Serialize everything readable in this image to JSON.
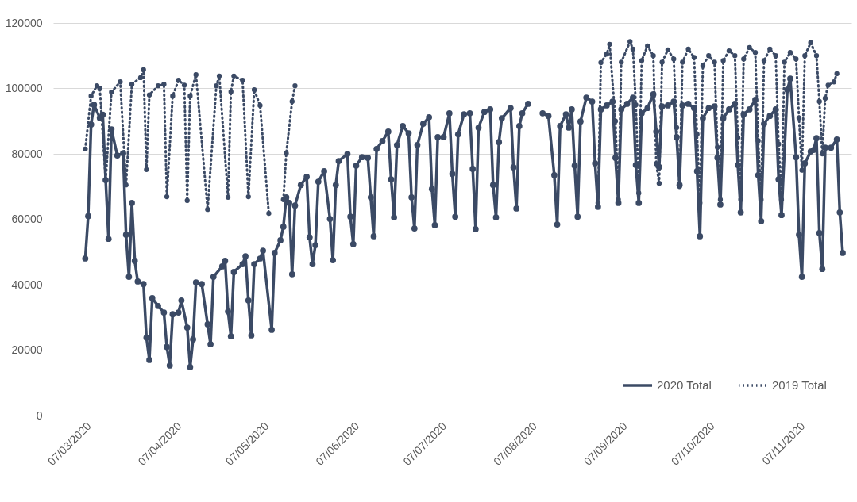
{
  "chart_data": {
    "type": "line",
    "marker": "circle",
    "grid": "y",
    "legend": "bottom right",
    "xlim": [
      "2020-02-25",
      "2020-11-25"
    ],
    "xticks": [
      {
        "value": "2020-03-07",
        "label": "07/03/2020"
      },
      {
        "value": "2020-04-07",
        "label": "07/04/2020"
      },
      {
        "value": "2020-05-07",
        "label": "07/05/2020"
      },
      {
        "value": "2020-06-07",
        "label": "07/06/2020"
      },
      {
        "value": "2020-07-07",
        "label": "07/07/2020"
      },
      {
        "value": "2020-08-07",
        "label": "07/08/2020"
      },
      {
        "value": "2020-09-07",
        "label": "07/09/2020"
      },
      {
        "value": "2020-10-07",
        "label": "07/10/2020"
      },
      {
        "value": "2020-11-07",
        "label": "07/11/2020"
      }
    ],
    "ylim": [
      0,
      120000
    ],
    "yticks": [
      0,
      20000,
      40000,
      60000,
      80000,
      100000,
      120000
    ],
    "series": [
      {
        "name": "2020 Total",
        "color": "#3b4a65",
        "line_style": "solid",
        "x": [
          "2020-03-07",
          "2020-03-08",
          "2020-03-09",
          "2020-03-10",
          "2020-03-12",
          "2020-03-13",
          "2020-03-14",
          "2020-03-15",
          "2020-03-16",
          "2020-03-18",
          "2020-03-20",
          "2020-03-21",
          "2020-03-22",
          "2020-03-23",
          "2020-03-24",
          "2020-03-25",
          "2020-03-27",
          "2020-03-28",
          "2020-03-29",
          "2020-03-30",
          "2020-04-01",
          "2020-04-03",
          "2020-04-04",
          "2020-04-05",
          "2020-04-06",
          "2020-04-08",
          "2020-04-09",
          "2020-04-11",
          "2020-04-12",
          "2020-04-13",
          "2020-04-14",
          "2020-04-16",
          "2020-04-18",
          "2020-04-19",
          "2020-04-20",
          "2020-04-23",
          "2020-04-24",
          "2020-04-25",
          "2020-04-26",
          "2020-04-27",
          "2020-04-30",
          "2020-05-01",
          "2020-05-02",
          "2020-05-03",
          "2020-05-04",
          "2020-05-06",
          "2020-05-07",
          "2020-05-10",
          "2020-05-11",
          "2020-05-13",
          "2020-05-14",
          "2020-05-15",
          "2020-05-16",
          "2020-05-17",
          "2020-05-18",
          "2020-05-20",
          "2020-05-22",
          "2020-05-23",
          "2020-05-24",
          "2020-05-25",
          "2020-05-26",
          "2020-05-28",
          "2020-05-30",
          "2020-05-31",
          "2020-06-01",
          "2020-06-02",
          "2020-06-05",
          "2020-06-06",
          "2020-06-07",
          "2020-06-08",
          "2020-06-10",
          "2020-06-12",
          "2020-06-13",
          "2020-06-14",
          "2020-06-15",
          "2020-06-17",
          "2020-06-19",
          "2020-06-20",
          "2020-06-21",
          "2020-06-22",
          "2020-06-24",
          "2020-06-26",
          "2020-06-27",
          "2020-06-28",
          "2020-06-29",
          "2020-07-01",
          "2020-07-03",
          "2020-07-04",
          "2020-07-05",
          "2020-07-06",
          "2020-07-08",
          "2020-07-10",
          "2020-07-11",
          "2020-07-12",
          "2020-07-13",
          "2020-07-15",
          "2020-07-17",
          "2020-07-18",
          "2020-07-19",
          "2020-07-20",
          "2020-07-22",
          "2020-07-24",
          "2020-07-25",
          "2020-07-26",
          "2020-07-27",
          "2020-07-28",
          "2020-07-31",
          "2020-08-01",
          "2020-08-02",
          "2020-08-03",
          "2020-08-04",
          "2020-08-06",
          "2020-08-09",
          "2020-08-11",
          "2020-08-13",
          "2020-08-15",
          "2020-08-16",
          "2020-08-17",
          "2020-08-19",
          "2020-08-20",
          "2020-08-21",
          "2020-08-22",
          "2020-08-23",
          "2020-08-24",
          "2020-08-26",
          "2020-08-28",
          "2020-08-29",
          "2020-08-30",
          "2020-08-31",
          "2020-09-02",
          "2020-09-04",
          "2020-09-05",
          "2020-09-06",
          "2020-09-07",
          "2020-09-09",
          "2020-09-11",
          "2020-09-12",
          "2020-09-13",
          "2020-09-14",
          "2020-09-16",
          "2020-09-18",
          "2020-09-19",
          "2020-09-20",
          "2020-09-21",
          "2020-09-23",
          "2020-09-25",
          "2020-09-26",
          "2020-09-27",
          "2020-09-28",
          "2020-09-30",
          "2020-10-02",
          "2020-10-03",
          "2020-10-04",
          "2020-10-05",
          "2020-10-07",
          "2020-10-09",
          "2020-10-10",
          "2020-10-11",
          "2020-10-12",
          "2020-10-14",
          "2020-10-16",
          "2020-10-17",
          "2020-10-18",
          "2020-10-19",
          "2020-10-21",
          "2020-10-23",
          "2020-10-24",
          "2020-10-25",
          "2020-10-26",
          "2020-10-28",
          "2020-10-30",
          "2020-10-31",
          "2020-11-01",
          "2020-11-03",
          "2020-11-04",
          "2020-11-06",
          "2020-11-07",
          "2020-11-08",
          "2020-11-09",
          "2020-11-11",
          "2020-11-12",
          "2020-11-13",
          "2020-11-14",
          "2020-11-15",
          "2020-11-16",
          "2020-11-18",
          "2020-11-20",
          "2020-11-21",
          "2020-11-22"
        ],
        "values": [
          48000,
          61000,
          89000,
          95000,
          91000,
          92000,
          72000,
          54000,
          87500,
          79500,
          80200,
          55300,
          42400,
          65000,
          47300,
          41000,
          40200,
          23800,
          17000,
          35900,
          33500,
          31500,
          21000,
          15300,
          31000,
          31500,
          35200,
          26900,
          14800,
          23300,
          40700,
          40200,
          27900,
          21800,
          42400,
          45600,
          47300,
          31800,
          24200,
          43900,
          46300,
          48700,
          35200,
          24500,
          46300,
          48000,
          50400,
          26200,
          49700,
          53600,
          57700,
          66700,
          65000,
          43200,
          64200,
          70500,
          73000,
          54500,
          46300,
          52100,
          71500,
          74700,
          60100,
          47500,
          70500,
          77800,
          80000,
          60800,
          52400,
          76400,
          79000,
          78800,
          66700,
          54800,
          81500,
          83900,
          86800,
          72200,
          60600,
          82700,
          88500,
          86300,
          66700,
          57200,
          82700,
          89200,
          91200,
          69300,
          58200,
          85100,
          85100,
          92400,
          73900,
          60800,
          86000,
          92100,
          92400,
          75400,
          57000,
          88000,
          92800,
          93600,
          70500,
          60600,
          83600,
          90900,
          94000,
          75900,
          63300,
          88500,
          92400,
          95300,
          null,
          92400,
          91600,
          73500,
          58400,
          88500,
          92100,
          88000,
          93600,
          76400,
          60800,
          89900,
          97200,
          96000,
          77100,
          63800,
          93600,
          94800,
          96000,
          78800,
          65000,
          93600,
          95300,
          97200,
          76600,
          65000,
          92400,
          94000,
          98200,
          86800,
          76000,
          94500,
          94800,
          96000,
          85100,
          70500,
          94800,
          95300,
          94000,
          74700,
          54800,
          90900,
          94000,
          94500,
          78800,
          64500,
          90900,
          93600,
          95300,
          76600,
          62100,
          92100,
          93600,
          96500,
          73500,
          59400,
          89200,
          91600,
          93600,
          72200,
          61300,
          99600,
          103000,
          79000,
          55300,
          42400,
          77100,
          80700,
          81200,
          84800,
          55800,
          44800,
          81900,
          81900,
          84400,
          62100,
          49700
        ]
      },
      {
        "name": "2019 Total",
        "color": "#3b4a65",
        "line_style": "dotted",
        "x": [
          "2020-03-07",
          "2020-03-09",
          "2020-03-11",
          "2020-03-12",
          "2020-03-14",
          "2020-03-16",
          "2020-03-19",
          "2020-03-21",
          "2020-03-23",
          "2020-03-26",
          "2020-03-27",
          "2020-03-28",
          "2020-03-29",
          "2020-04-01",
          "2020-04-03",
          "2020-04-04",
          "2020-04-06",
          "2020-04-08",
          "2020-04-10",
          "2020-04-11",
          "2020-04-12",
          "2020-04-14",
          "2020-04-18",
          "2020-04-21",
          "2020-04-22",
          "2020-04-25",
          "2020-04-26",
          "2020-04-27",
          "2020-04-30",
          "2020-05-02",
          "2020-05-04",
          "2020-05-06",
          "2020-05-09",
          "2020-05-12",
          "2020-05-14",
          "2020-05-15",
          "2020-05-17",
          "2020-05-18",
          "2020-08-25",
          "2020-08-30",
          "2020-08-31",
          "2020-09-02",
          "2020-09-03",
          "2020-09-05",
          "2020-09-06",
          "2020-09-07",
          "2020-09-10",
          "2020-09-11",
          "2020-09-12",
          "2020-09-13",
          "2020-09-14",
          "2020-09-16",
          "2020-09-18",
          "2020-09-19",
          "2020-09-20",
          "2020-09-21",
          "2020-09-23",
          "2020-09-25",
          "2020-09-26",
          "2020-09-27",
          "2020-09-28",
          "2020-09-30",
          "2020-10-02",
          "2020-10-03",
          "2020-10-04",
          "2020-10-05",
          "2020-10-07",
          "2020-10-09",
          "2020-10-10",
          "2020-10-11",
          "2020-10-12",
          "2020-10-14",
          "2020-10-16",
          "2020-10-17",
          "2020-10-18",
          "2020-10-19",
          "2020-10-21",
          "2020-10-23",
          "2020-10-24",
          "2020-10-25",
          "2020-10-26",
          "2020-10-28",
          "2020-10-30",
          "2020-10-31",
          "2020-11-01",
          "2020-11-02",
          "2020-11-04",
          "2020-11-06",
          "2020-11-07",
          "2020-11-08",
          "2020-11-09",
          "2020-11-11",
          "2020-11-13",
          "2020-11-14",
          "2020-11-15",
          "2020-11-16",
          "2020-11-17",
          "2020-11-19",
          "2020-11-20"
        ],
        "values": [
          81500,
          97700,
          100800,
          100000,
          72000,
          98900,
          102000,
          70500,
          101300,
          103300,
          105700,
          75200,
          98000,
          100800,
          101300,
          66900,
          97700,
          102500,
          101000,
          65700,
          97700,
          104200,
          63000,
          100800,
          103800,
          66700,
          99000,
          103800,
          102500,
          66900,
          99600,
          94800,
          61800,
          null,
          66000,
          80200,
          96000,
          100800,
          null,
          65000,
          107900,
          110500,
          113500,
          90000,
          66000,
          108000,
          114300,
          112000,
          95000,
          68000,
          108500,
          113000,
          110000,
          77000,
          71000,
          108000,
          111800,
          109000,
          88000,
          70000,
          108000,
          112000,
          109500,
          86000,
          65000,
          107000,
          110000,
          108000,
          82000,
          66000,
          108500,
          111500,
          110000,
          85000,
          66000,
          109000,
          112500,
          111000,
          84000,
          66000,
          108500,
          112000,
          110000,
          83000,
          66000,
          108000,
          111000,
          109000,
          91000,
          75000,
          110000,
          114000,
          110000,
          96000,
          80000,
          97000,
          101000,
          102000,
          104500
        ]
      }
    ]
  }
}
